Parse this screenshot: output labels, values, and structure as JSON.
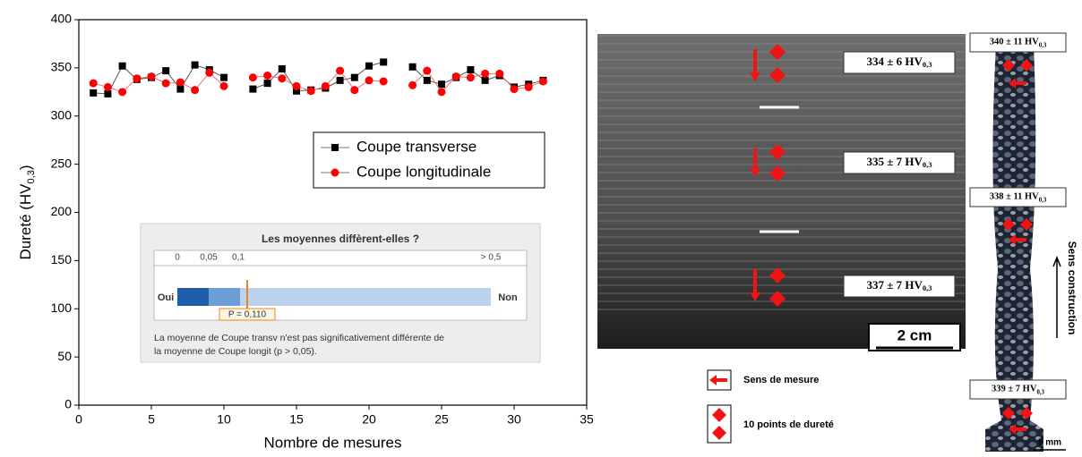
{
  "chart_data": {
    "type": "line",
    "x_label": "Nombre de mesures",
    "y_label": {
      "main": "Dureté  (HV",
      "sub": "0,3",
      "end": ")"
    },
    "x": [
      1,
      2,
      3,
      4,
      5,
      6,
      7,
      8,
      9,
      10,
      11,
      12,
      13,
      14,
      15,
      16,
      17,
      18,
      19,
      20,
      21,
      22,
      23,
      24,
      25,
      26,
      27,
      28,
      29,
      30,
      31,
      32
    ],
    "series": [
      {
        "name": "Coupe transverse",
        "color": "#000000",
        "marker": "square",
        "values": [
          324,
          323,
          352,
          338,
          340,
          347,
          328,
          353,
          348,
          340,
          null,
          328,
          334,
          349,
          326,
          327,
          329,
          337,
          340,
          352,
          356,
          null,
          351,
          337,
          333,
          340,
          348,
          337,
          342,
          330,
          333,
          337
        ]
      },
      {
        "name": "Coupe longitudinale",
        "color": "#ff0000",
        "marker": "circle",
        "values": [
          334,
          330,
          325,
          339,
          341,
          334,
          335,
          327,
          345,
          331,
          null,
          340,
          342,
          339,
          331,
          326,
          331,
          347,
          327,
          337,
          336,
          null,
          332,
          347,
          325,
          341,
          340,
          344,
          344,
          328,
          330,
          336
        ]
      }
    ],
    "xlim": [
      0,
      35
    ],
    "xticks": [
      0,
      5,
      10,
      15,
      20,
      25,
      30,
      35
    ],
    "ylim": [
      0,
      400
    ],
    "yticks": [
      0,
      50,
      100,
      150,
      200,
      250,
      300,
      350,
      400
    ],
    "legend": "center right"
  },
  "inset": {
    "title": "Les moyennes diffèrent-elles ?",
    "scale_labels": [
      "0",
      "0,05",
      "0,1",
      "> 0,5"
    ],
    "left": "Oui",
    "right": "Non",
    "p_label": "P = 0,110",
    "text": [
      "La moyenne de Coupe transv n'est pas significativement différente de",
      "la moyenne de Coupe longit (p > 0,05)."
    ]
  },
  "figure": {
    "wide_labels": [
      {
        "main": "334 ± 6 HV",
        "sub": "0,3"
      },
      {
        "main": "335 ± 7 HV",
        "sub": "0,3"
      },
      {
        "main": "337 ± 7 HV",
        "sub": "0,3"
      }
    ],
    "thin_labels": [
      {
        "main": "340 ± 11 HV",
        "sub": "0,3"
      },
      {
        "main": "338 ± 11 HV",
        "sub": "0,3"
      },
      {
        "main": "339 ± 7 HV",
        "sub": "0,3"
      }
    ],
    "scale_wide": "2 cm",
    "scale_thin": "5 mm",
    "legend_arrow": "Sens de mesure",
    "legend_points": "10 points de dureté",
    "build_direction": "Sens construction"
  }
}
